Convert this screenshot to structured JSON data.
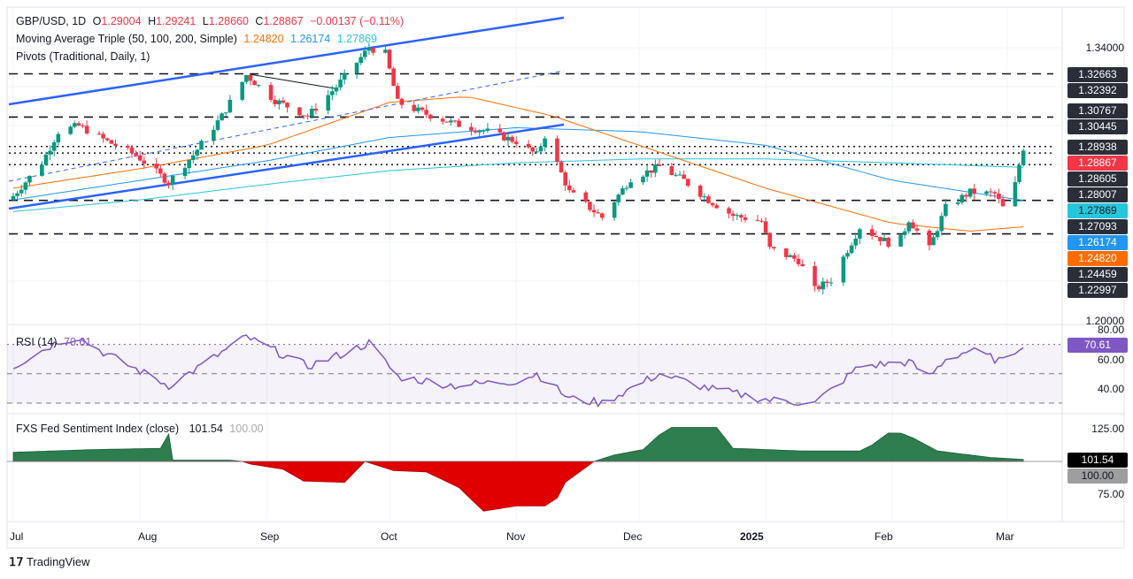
{
  "header": {
    "symbol": "GBP/USD, 1D",
    "o_label": "O",
    "o": "1.29004",
    "h_label": "H",
    "h": "1.29241",
    "l_label": "L",
    "l": "1.28660",
    "c_label": "C",
    "c": "1.28867",
    "change": "−0.00137 (−0.11%)"
  },
  "ma_legend": {
    "label": "Moving Average Triple (50, 100, 200, Simple)",
    "ma50": "1.24820",
    "ma100": "1.26174",
    "ma200": "1.27869"
  },
  "pivots_legend": "Pivots (Traditional, Daily, 1)",
  "rsi_legend": {
    "label": "RSI (14)",
    "value": "70.61"
  },
  "fed_legend": {
    "label": "FXS Fed Sentiment Index (close)",
    "value": "101.54",
    "base": "100.00"
  },
  "price_axis": {
    "top": "1.34000",
    "bottom": "1.20000"
  },
  "price_tags": [
    {
      "v": "1.32663",
      "color": "#2a2e39"
    },
    {
      "v": "1.32392",
      "color": "#2a2e39"
    },
    {
      "v": "1.30767",
      "color": "#2a2e39"
    },
    {
      "v": "1.30445",
      "color": "#2a2e39"
    },
    {
      "v": "1.28938",
      "color": "#2a2e39"
    },
    {
      "v": "1.28867",
      "color": "#f23645"
    },
    {
      "v": "1.28605",
      "color": "#2a2e39"
    },
    {
      "v": "1.28007",
      "color": "#2a2e39"
    },
    {
      "v": "1.27869",
      "color": "#26c6da"
    },
    {
      "v": "1.27093",
      "color": "#2a2e39"
    },
    {
      "v": "1.26174",
      "color": "#2196f3"
    },
    {
      "v": "1.24820",
      "color": "#ff6d00"
    },
    {
      "v": "1.24459",
      "color": "#2a2e39"
    },
    {
      "v": "1.22997",
      "color": "#2a2e39"
    }
  ],
  "rsi_axis": [
    "80.00",
    "60.00",
    "40.00"
  ],
  "fed_axis": [
    "125.00",
    "75.00"
  ],
  "time_axis": [
    "Jul",
    "Aug",
    "Sep",
    "Oct",
    "Nov",
    "Dec",
    "2025",
    "Feb",
    "Mar"
  ],
  "brand": "TradingView",
  "colors": {
    "up": "#089981",
    "down": "#f23645",
    "ma50": "#ff6d00",
    "ma100": "#2196f3",
    "ma200": "#26c6da",
    "rsi": "#7e57c2",
    "fed_pos": "#2e7d4f",
    "fed_neg": "#e00000"
  },
  "chart_data": {
    "type": "candlestick",
    "title": "GBP/USD, 1D",
    "ylim": [
      1.2,
      1.34
    ],
    "pivot_levels": [
      1.32663,
      1.30445,
      1.28938,
      1.28605,
      1.28007,
      1.26174,
      1.24459
    ],
    "close_keypoints": [
      [
        "2024-07-01",
        1.264
      ],
      [
        "2024-07-08",
        1.281
      ],
      [
        "2024-07-12",
        1.297
      ],
      [
        "2024-07-17",
        1.3
      ],
      [
        "2024-07-24",
        1.292
      ],
      [
        "2024-07-31",
        1.285
      ],
      [
        "2024-08-08",
        1.271
      ],
      [
        "2024-08-14",
        1.285
      ],
      [
        "2024-08-21",
        1.305
      ],
      [
        "2024-08-27",
        1.326
      ],
      [
        "2024-09-03",
        1.313
      ],
      [
        "2024-09-11",
        1.305
      ],
      [
        "2024-09-18",
        1.32
      ],
      [
        "2024-09-26",
        1.34
      ],
      [
        "2024-09-30",
        1.337
      ],
      [
        "2024-10-03",
        1.312
      ],
      [
        "2024-10-10",
        1.306
      ],
      [
        "2024-10-17",
        1.301
      ],
      [
        "2024-10-25",
        1.297
      ],
      [
        "2024-11-01",
        1.292
      ],
      [
        "2024-11-06",
        1.285
      ],
      [
        "2024-11-08",
        1.295
      ],
      [
        "2024-11-14",
        1.266
      ],
      [
        "2024-11-22",
        1.253
      ],
      [
        "2024-11-29",
        1.273
      ],
      [
        "2024-12-06",
        1.279
      ],
      [
        "2024-12-12",
        1.272
      ],
      [
        "2024-12-18",
        1.262
      ],
      [
        "2024-12-24",
        1.254
      ],
      [
        "2024-12-31",
        1.251
      ],
      [
        "2025-01-02",
        1.237
      ],
      [
        "2025-01-09",
        1.231
      ],
      [
        "2025-01-13",
        1.216
      ],
      [
        "2025-01-17",
        1.221
      ],
      [
        "2025-01-24",
        1.248
      ],
      [
        "2025-01-31",
        1.24
      ],
      [
        "2025-02-03",
        1.242
      ],
      [
        "2025-02-05",
        1.252
      ],
      [
        "2025-02-10",
        1.237
      ],
      [
        "2025-02-14",
        1.258
      ],
      [
        "2025-02-20",
        1.266
      ],
      [
        "2025-02-26",
        1.265
      ],
      [
        "2025-02-28",
        1.258
      ],
      [
        "2025-03-03",
        1.27
      ],
      [
        "2025-03-04",
        1.28
      ],
      [
        "2025-03-05",
        1.28867
      ]
    ],
    "ma50_keypoints": [
      [
        "2024-07-01",
        1.268
      ],
      [
        "2024-08-01",
        1.278
      ],
      [
        "2024-09-01",
        1.29
      ],
      [
        "2024-10-01",
        1.312
      ],
      [
        "2024-10-20",
        1.315
      ],
      [
        "2024-11-10",
        1.305
      ],
      [
        "2024-12-01",
        1.29
      ],
      [
        "2025-01-01",
        1.268
      ],
      [
        "2025-02-01",
        1.25
      ],
      [
        "2025-02-20",
        1.246
      ],
      [
        "2025-03-05",
        1.2482
      ]
    ],
    "ma100_keypoints": [
      [
        "2024-07-01",
        1.262
      ],
      [
        "2024-08-01",
        1.272
      ],
      [
        "2024-09-01",
        1.282
      ],
      [
        "2024-10-01",
        1.294
      ],
      [
        "2024-11-01",
        1.299
      ],
      [
        "2024-12-01",
        1.297
      ],
      [
        "2025-01-01",
        1.29
      ],
      [
        "2025-02-01",
        1.272
      ],
      [
        "2025-03-05",
        1.26174
      ]
    ],
    "ma200_keypoints": [
      [
        "2024-07-01",
        1.256
      ],
      [
        "2024-08-01",
        1.262
      ],
      [
        "2024-09-01",
        1.27
      ],
      [
        "2024-10-01",
        1.277
      ],
      [
        "2024-11-01",
        1.281
      ],
      [
        "2024-12-01",
        1.283
      ],
      [
        "2025-01-01",
        1.283
      ],
      [
        "2025-02-01",
        1.281
      ],
      [
        "2025-03-05",
        1.27869
      ]
    ],
    "rsi": {
      "ylim": [
        20,
        85
      ],
      "levels": [
        70,
        50,
        30
      ],
      "keypoints": [
        [
          "2024-07-01",
          55
        ],
        [
          "2024-07-12",
          72
        ],
        [
          "2024-07-17",
          75
        ],
        [
          "2024-07-24",
          63
        ],
        [
          "2024-08-08",
          42
        ],
        [
          "2024-08-14",
          52
        ],
        [
          "2024-08-27",
          75
        ],
        [
          "2024-09-11",
          55
        ],
        [
          "2024-09-20",
          64
        ],
        [
          "2024-09-26",
          71
        ],
        [
          "2024-10-03",
          48
        ],
        [
          "2024-10-17",
          42
        ],
        [
          "2024-11-01",
          45
        ],
        [
          "2024-11-06",
          50
        ],
        [
          "2024-11-14",
          33
        ],
        [
          "2024-11-22",
          30
        ],
        [
          "2024-12-06",
          50
        ],
        [
          "2024-12-18",
          40
        ],
        [
          "2025-01-02",
          32
        ],
        [
          "2025-01-13",
          30
        ],
        [
          "2025-01-24",
          55
        ],
        [
          "2025-02-05",
          58
        ],
        [
          "2025-02-10",
          48
        ],
        [
          "2025-02-14",
          60
        ],
        [
          "2025-02-20",
          66
        ],
        [
          "2025-02-28",
          58
        ],
        [
          "2025-03-05",
          70.61
        ]
      ]
    },
    "fed_sentiment": {
      "ylim": [
        60,
        130
      ],
      "baseline": 100,
      "keypoints": [
        [
          "2024-07-01",
          107
        ],
        [
          "2024-07-20",
          109
        ],
        [
          "2024-08-06",
          110
        ],
        [
          "2024-08-08",
          121
        ],
        [
          "2024-08-09",
          101
        ],
        [
          "2024-08-25",
          101
        ],
        [
          "2024-08-28",
          98
        ],
        [
          "2024-09-05",
          94
        ],
        [
          "2024-09-10",
          85
        ],
        [
          "2024-09-20",
          84
        ],
        [
          "2024-09-25",
          100
        ],
        [
          "2024-10-02",
          93
        ],
        [
          "2024-10-10",
          92
        ],
        [
          "2024-10-18",
          80
        ],
        [
          "2024-10-24",
          62
        ],
        [
          "2024-11-01",
          66
        ],
        [
          "2024-11-10",
          66
        ],
        [
          "2024-11-13",
          84
        ],
        [
          "2024-11-20",
          100
        ],
        [
          "2024-11-25",
          105
        ],
        [
          "2024-12-02",
          109
        ],
        [
          "2024-12-08",
          126
        ],
        [
          "2024-12-20",
          126
        ],
        [
          "2024-12-24",
          110
        ],
        [
          "2025-01-10",
          108
        ],
        [
          "2025-01-25",
          108
        ],
        [
          "2025-02-01",
          124
        ],
        [
          "2025-02-06",
          118
        ],
        [
          "2025-02-12",
          108
        ],
        [
          "2025-02-25",
          103
        ],
        [
          "2025-03-05",
          101.54
        ]
      ]
    }
  }
}
